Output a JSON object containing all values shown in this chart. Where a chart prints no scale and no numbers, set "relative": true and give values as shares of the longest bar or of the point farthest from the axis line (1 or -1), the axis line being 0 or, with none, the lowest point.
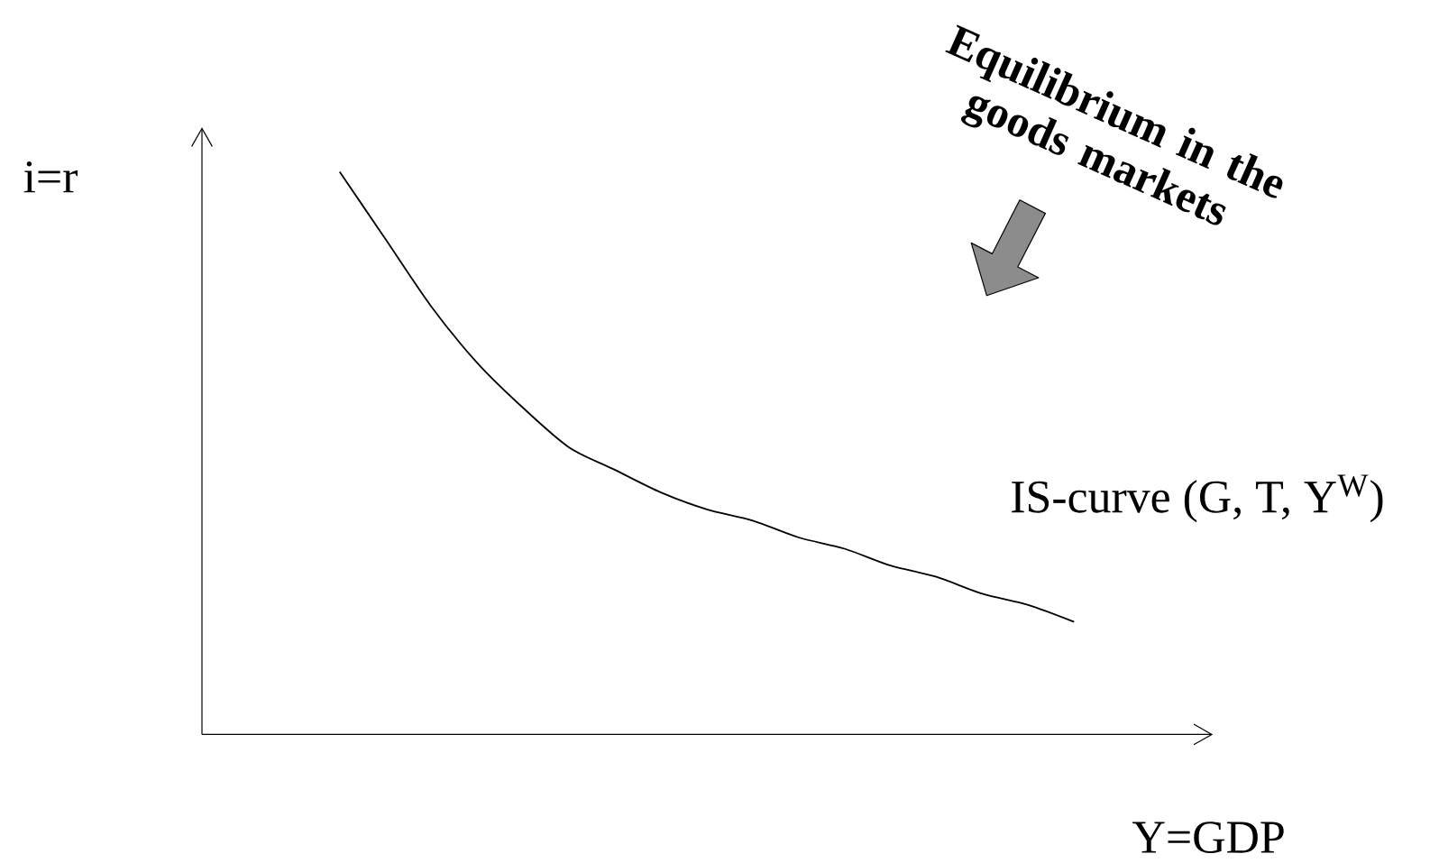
{
  "chart_data": {
    "type": "line",
    "relative": true,
    "marker": "none",
    "xlabel": "Y=GDP",
    "ylabel": "i=r",
    "categories": [
      null,
      null,
      null,
      null,
      null,
      null,
      null,
      null,
      null,
      null,
      null,
      null,
      null,
      null,
      null,
      null,
      null,
      null,
      null,
      null,
      null,
      null,
      null
    ],
    "series": [
      {
        "color": "#000000",
        "values": [
          null,
          null,
          null,
          1.0,
          0.88,
          0.76,
          0.66,
          0.58,
          0.51,
          0.47,
          0.43,
          0.4,
          0.38,
          0.35,
          0.33,
          0.3,
          0.28,
          0.25,
          0.23,
          0.2,
          null,
          null,
          null
        ]
      }
    ],
    "annotations": [
      "IS-curve (G, T, Y$^{W}$)",
      "Equilibrium in the goods markets"
    ]
  }
}
